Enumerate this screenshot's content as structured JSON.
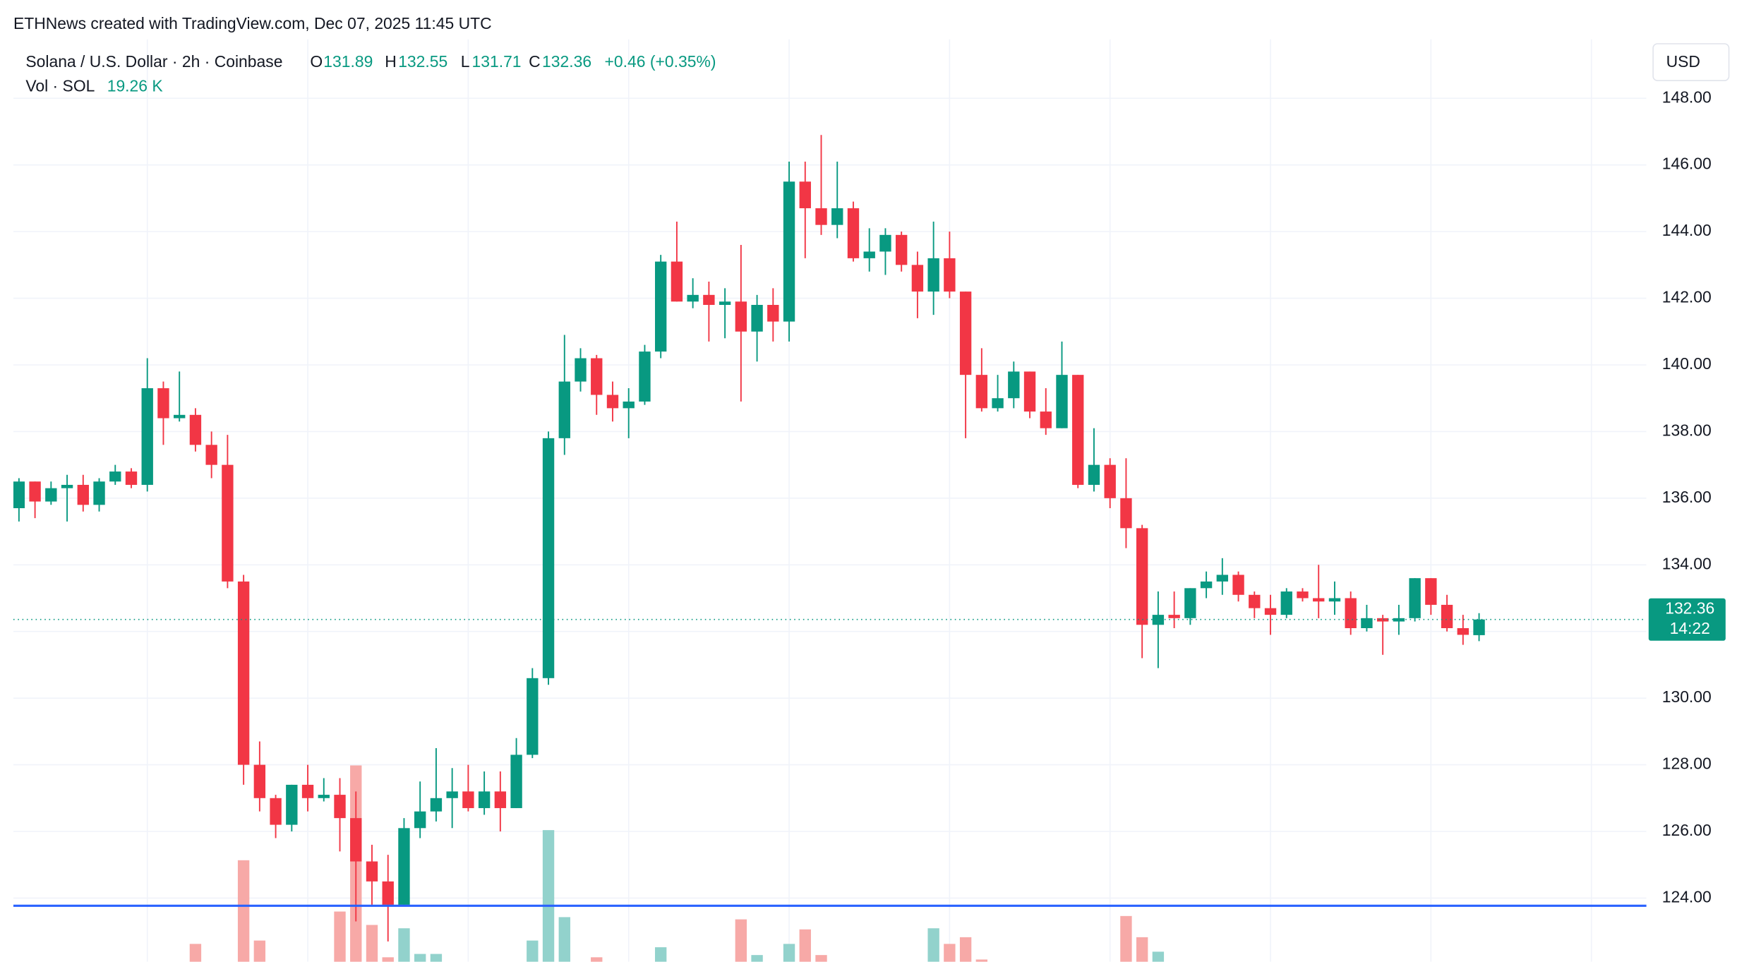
{
  "header": {
    "attribution": "ETHNews created with TradingView.com, Dec 07, 2025 11:45 UTC",
    "symbol": "Solana / U.S. Dollar · 2h · Coinbase",
    "open_label": "O",
    "open": "131.89",
    "high_label": "H",
    "high": "132.55",
    "low_label": "L",
    "low": "131.71",
    "close_label": "C",
    "close": "132.36",
    "change": "+0.46 (+0.35%)",
    "volume_label": "Vol · SOL",
    "volume": "19.26 K",
    "currency": "USD",
    "countdown": "14:22"
  },
  "chart_data": {
    "type": "candlestick",
    "open": [
      135.7,
      136.5,
      135.9,
      136.3,
      136.4,
      135.8,
      136.5,
      136.8,
      136.4,
      139.3,
      138.4,
      138.5,
      137.6,
      137.0,
      133.5,
      128.0,
      127.0,
      126.2,
      127.4,
      127.0,
      127.1,
      126.4,
      125.1,
      124.5,
      123.8,
      126.1,
      126.6,
      127.0,
      127.2,
      126.7,
      127.2,
      126.7,
      128.3,
      130.6,
      137.8,
      139.5,
      140.2,
      139.1,
      138.7,
      138.9,
      140.4,
      143.1,
      141.9,
      142.1,
      141.8,
      141.9,
      141.0,
      141.8,
      141.3,
      145.5,
      144.7,
      144.2,
      144.7,
      143.2,
      143.4,
      143.9,
      143.0,
      142.2,
      143.2,
      142.2,
      139.7,
      138.7,
      139.0,
      139.8,
      138.6,
      138.1,
      139.7,
      136.4,
      137.0,
      136.0,
      135.1,
      132.2,
      132.5,
      132.4,
      133.3,
      133.5,
      133.7,
      133.1,
      132.7,
      132.5,
      133.2,
      133.0,
      132.9,
      133.0,
      132.1,
      132.4,
      132.3,
      132.4,
      133.6,
      132.8,
      132.1,
      131.89
    ],
    "close": [
      136.5,
      135.9,
      136.3,
      136.4,
      135.8,
      136.5,
      136.8,
      136.4,
      139.3,
      138.4,
      138.5,
      137.6,
      137.0,
      133.5,
      128.0,
      127.0,
      126.2,
      127.4,
      127.0,
      127.1,
      126.4,
      125.1,
      124.5,
      123.8,
      126.1,
      126.6,
      127.0,
      127.2,
      126.7,
      127.2,
      126.7,
      128.3,
      130.6,
      137.8,
      139.5,
      140.2,
      139.1,
      138.7,
      138.9,
      140.4,
      143.1,
      141.9,
      142.1,
      141.8,
      141.9,
      141.0,
      141.8,
      141.3,
      145.5,
      144.7,
      144.2,
      144.7,
      143.2,
      143.4,
      143.9,
      143.0,
      142.2,
      143.2,
      142.2,
      139.7,
      138.7,
      139.0,
      139.8,
      138.6,
      138.1,
      139.7,
      136.4,
      137.0,
      136.0,
      135.1,
      132.2,
      132.5,
      132.4,
      133.3,
      133.5,
      133.7,
      133.1,
      132.7,
      132.5,
      133.2,
      133.0,
      132.9,
      133.0,
      132.1,
      132.4,
      132.3,
      132.4,
      133.6,
      132.8,
      132.1,
      131.9,
      132.36
    ],
    "high": [
      136.6,
      136.5,
      136.5,
      136.7,
      136.7,
      136.6,
      137.0,
      136.9,
      140.2,
      139.5,
      139.8,
      138.7,
      138.0,
      137.9,
      133.7,
      128.7,
      127.1,
      127.4,
      128.0,
      127.6,
      127.6,
      127.2,
      125.6,
      125.3,
      126.4,
      127.5,
      128.5,
      127.9,
      128.0,
      127.8,
      127.8,
      128.8,
      130.9,
      138.0,
      140.9,
      140.5,
      140.3,
      139.5,
      139.3,
      140.6,
      143.3,
      144.3,
      142.6,
      142.5,
      142.3,
      143.6,
      142.1,
      142.3,
      146.1,
      146.1,
      146.9,
      146.1,
      144.9,
      144.1,
      144.1,
      144.0,
      143.4,
      144.3,
      144.0,
      142.2,
      140.5,
      139.7,
      140.1,
      139.8,
      139.3,
      140.7,
      139.7,
      138.1,
      137.2,
      137.2,
      135.2,
      133.2,
      133.2,
      133.3,
      133.8,
      134.2,
      133.8,
      133.2,
      133.1,
      133.3,
      133.3,
      134.0,
      133.5,
      133.2,
      132.8,
      132.5,
      132.8,
      133.6,
      133.6,
      133.1,
      132.5,
      132.55
    ],
    "low": [
      135.3,
      135.4,
      135.8,
      135.3,
      135.6,
      135.6,
      136.4,
      136.3,
      136.2,
      137.6,
      138.3,
      137.4,
      136.6,
      133.3,
      127.4,
      126.6,
      125.8,
      126.0,
      126.6,
      126.9,
      125.4,
      123.3,
      123.8,
      122.7,
      123.8,
      125.8,
      126.3,
      126.1,
      126.6,
      126.5,
      126.0,
      126.7,
      128.2,
      130.4,
      137.3,
      139.2,
      138.5,
      138.3,
      137.8,
      138.8,
      140.2,
      141.9,
      141.7,
      140.7,
      140.8,
      138.9,
      140.1,
      140.7,
      140.7,
      143.2,
      143.9,
      143.8,
      143.1,
      142.8,
      142.7,
      142.8,
      141.4,
      141.5,
      142.0,
      137.8,
      138.6,
      138.6,
      138.7,
      138.4,
      137.9,
      138.1,
      136.3,
      136.2,
      135.7,
      134.5,
      131.2,
      130.9,
      132.1,
      132.2,
      133.0,
      133.1,
      132.9,
      132.4,
      131.9,
      132.4,
      132.9,
      132.4,
      132.5,
      131.9,
      132.0,
      131.3,
      131.9,
      132.3,
      132.5,
      132.0,
      131.6,
      131.71
    ],
    "volume": [
      12,
      10,
      9,
      8,
      11,
      9,
      8,
      10,
      18,
      12,
      8,
      29.5,
      15,
      19,
      67,
      31,
      18,
      14,
      12,
      10,
      44,
      109.5,
      38,
      23.5,
      36.5,
      25,
      25,
      15,
      14,
      12,
      13,
      12,
      31,
      80.5,
      41.5,
      18,
      23.5,
      14,
      12,
      16,
      28,
      18,
      10,
      12,
      9,
      40.5,
      24.5,
      12,
      29.5,
      36,
      24.5,
      16,
      17,
      10,
      9,
      11,
      15,
      36.5,
      29.5,
      32.5,
      22.5,
      12,
      14,
      15,
      12,
      18,
      19,
      14,
      13,
      42,
      32.5,
      26,
      10,
      15,
      8,
      10,
      9,
      8,
      7,
      9,
      6,
      10,
      7,
      10,
      6,
      8,
      6,
      12,
      9,
      10,
      8,
      19.26
    ],
    "up_color": "#089981",
    "down_color": "#f23645",
    "volume_up_color": "#92d2cc",
    "volume_down_color": "#f7a9a7",
    "ylim": [
      122.09,
      149.77
    ],
    "yticks": [
      {
        "value": 124,
        "label": "124.00"
      },
      {
        "value": 126,
        "label": "126.00"
      },
      {
        "value": 128,
        "label": "128.00"
      },
      {
        "value": 130,
        "label": "130.00"
      },
      {
        "value": 132,
        "label": "132.00"
      },
      {
        "value": 134,
        "label": "134.00"
      },
      {
        "value": 136,
        "label": "136.00"
      },
      {
        "value": 138,
        "label": "138.00"
      },
      {
        "value": 140,
        "label": "140.00"
      },
      {
        "value": 142,
        "label": "142.00"
      },
      {
        "value": 144,
        "label": "144.00"
      },
      {
        "value": 146,
        "label": "146.00"
      },
      {
        "value": 148,
        "label": "148.00"
      }
    ],
    "volume_ylim": [
      0,
      120
    ],
    "grid": true,
    "hline": {
      "value": 123.77,
      "color": "#2962ff"
    }
  }
}
